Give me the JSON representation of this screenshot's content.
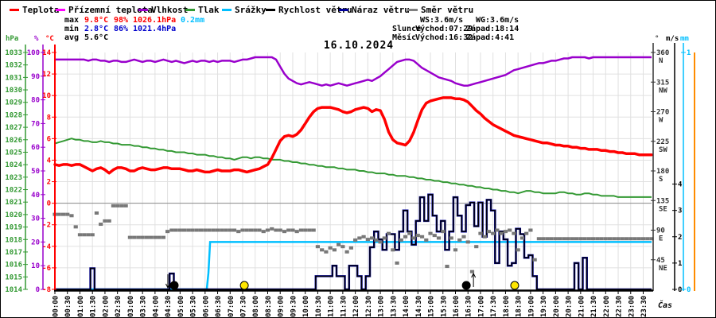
{
  "header": {
    "legend": [
      {
        "label": "Teplota",
        "color": "#ff0000"
      },
      {
        "label": "Přízemní teplota",
        "color": "#ff00ff"
      },
      {
        "label": "Vlhkost",
        "color": "#9900cc"
      },
      {
        "label": "Tlak",
        "color": "#339933"
      },
      {
        "label": "Srážky",
        "color": "#00bfff"
      },
      {
        "label": "Rychlost větru",
        "color": "#000000"
      },
      {
        "label": "Náraz větru",
        "color": "#000099"
      },
      {
        "label": "Směr větru",
        "color": "#808080"
      }
    ],
    "stats": {
      "max_label": "max",
      "max_temp": "9.8°C",
      "max_hum": "98%",
      "max_pres": "1026.1hPa",
      "max_precip": "0.2mm",
      "min_label": "min",
      "min_temp": "2.8°C",
      "min_hum": "86%",
      "min_pres": "1021.4hPa",
      "avg_label": "avg",
      "avg_temp": "5.6°C",
      "ws": "WS:3.6m/s",
      "wg": "WG:3.6m/s",
      "sun_label": "Slunce",
      "sun_rise": "Východ:07:29",
      "sun_set": "Západ:18:14",
      "moon_label": "Měsíc",
      "moon_rise": "Východ:16:32",
      "moon_set": "Západ:4:41"
    }
  },
  "colors": {
    "temperature": "#ff0000",
    "ground_temperature": "#ff00ff",
    "humidity": "#9900cc",
    "pressure": "#339933",
    "precipitation": "#00bfff",
    "wind_speed": "#000000",
    "wind_gust": "#000099",
    "wind_direction": "#787878",
    "stat_min": "#0000cc",
    "grid": "#e0e0e0",
    "zero_line": "#888888",
    "right_extra_axis": "#ff8c00",
    "sun_marker": "#ffe600",
    "moon_marker": "#000000"
  },
  "chart_data": {
    "type": "line",
    "title": "16.10.2024",
    "x_axis": {
      "label": "Čas",
      "start": "00:00",
      "end": "23:50",
      "step_minutes": 10,
      "tick_labels": [
        "00:00",
        "00:30",
        "01:00",
        "01:30",
        "02:00",
        "02:30",
        "03:00",
        "03:30",
        "04:00",
        "04:30",
        "05:00",
        "05:30",
        "06:00",
        "06:30",
        "07:00",
        "07:30",
        "08:00",
        "08:30",
        "09:00",
        "09:30",
        "10:00",
        "10:30",
        "11:00",
        "11:30",
        "12:00",
        "12:30",
        "13:00",
        "13:30",
        "14:00",
        "14:30",
        "15:00",
        "15:30",
        "16:00",
        "16:30",
        "17:00",
        "17:30",
        "18:00",
        "18:30",
        "19:00",
        "19:30",
        "20:00",
        "20:30",
        "21:00",
        "21:30",
        "22:00",
        "22:30",
        "23:00",
        "23:30"
      ]
    },
    "axes": {
      "temperature": {
        "label": "°C",
        "min": -8,
        "max": 14,
        "tick_step": 2
      },
      "humidity": {
        "label": "%",
        "min": 0,
        "max": 100,
        "tick_step": 10
      },
      "pressure": {
        "label": "hPa",
        "min": 1014,
        "max": 1033,
        "tick_step": 1
      },
      "direction": {
        "label": "°",
        "min": 0,
        "max": 360,
        "ticks": [
          [
            360,
            "N"
          ],
          [
            315,
            "NW"
          ],
          [
            270,
            "W"
          ],
          [
            225,
            "SW"
          ],
          [
            180,
            "S"
          ],
          [
            135,
            "SE"
          ],
          [
            90,
            "E"
          ],
          [
            45,
            "NE"
          ]
        ]
      },
      "wind": {
        "label": "m/s",
        "min": 0,
        "max": 9,
        "labeled_ticks": [
          0,
          1,
          2,
          3,
          4
        ]
      },
      "precip": {
        "label": "mm",
        "min": 0,
        "max": 1,
        "labeled_ticks": [
          0,
          1
        ]
      }
    },
    "series": {
      "temperature_c": [
        3.6,
        3.5,
        3.6,
        3.6,
        3.5,
        3.6,
        3.6,
        3.4,
        3.2,
        3.0,
        3.2,
        3.3,
        3.1,
        2.8,
        3.1,
        3.3,
        3.3,
        3.2,
        3.0,
        3.0,
        3.2,
        3.3,
        3.2,
        3.1,
        3.1,
        3.2,
        3.3,
        3.3,
        3.2,
        3.2,
        3.2,
        3.1,
        3.0,
        3.0,
        3.1,
        3.0,
        2.9,
        2.9,
        3.0,
        3.1,
        3.0,
        3.0,
        3.0,
        3.1,
        3.1,
        3.0,
        2.9,
        3.0,
        3.1,
        3.2,
        3.4,
        3.6,
        4.2,
        5.0,
        5.8,
        6.2,
        6.3,
        6.2,
        6.4,
        6.8,
        7.4,
        8.0,
        8.5,
        8.8,
        8.9,
        8.9,
        8.9,
        8.8,
        8.7,
        8.5,
        8.4,
        8.5,
        8.7,
        8.8,
        8.9,
        8.8,
        8.5,
        8.7,
        8.6,
        7.8,
        6.6,
        5.9,
        5.6,
        5.5,
        5.4,
        5.8,
        6.6,
        7.7,
        8.7,
        9.3,
        9.5,
        9.6,
        9.7,
        9.8,
        9.8,
        9.8,
        9.7,
        9.7,
        9.6,
        9.4,
        9.0,
        8.6,
        8.3,
        7.9,
        7.6,
        7.3,
        7.1,
        6.9,
        6.7,
        6.5,
        6.3,
        6.2,
        6.1,
        6.0,
        5.9,
        5.8,
        5.7,
        5.6,
        5.6,
        5.5,
        5.4,
        5.4,
        5.3,
        5.3,
        5.2,
        5.2,
        5.1,
        5.1,
        5.0,
        5.0,
        5.0,
        4.9,
        4.9,
        4.8,
        4.8,
        4.7,
        4.7,
        4.6,
        4.6,
        4.6,
        4.5,
        4.5,
        4.5,
        4.5
      ],
      "humidity_pct": [
        97,
        97,
        97,
        97,
        97,
        97,
        97,
        97,
        96.5,
        97,
        97,
        96.5,
        96.5,
        96,
        96.5,
        96.5,
        96,
        96,
        96.5,
        97,
        96.5,
        96,
        96.5,
        96.5,
        96,
        96.5,
        97,
        96.5,
        96,
        96.5,
        96,
        95.5,
        96,
        96.5,
        96,
        96.5,
        96.5,
        96,
        96.5,
        96,
        96.5,
        96.5,
        96.5,
        96,
        96.5,
        97,
        97,
        97.5,
        98,
        98,
        98,
        98,
        98,
        97,
        94,
        91,
        89,
        88,
        87,
        86.5,
        87,
        87.5,
        87,
        86.5,
        86,
        86.5,
        86,
        86.5,
        87,
        86.5,
        86,
        86.5,
        87,
        87.5,
        88,
        88.5,
        88,
        89,
        90,
        91.5,
        93,
        94.5,
        96,
        96.5,
        97,
        97,
        96.5,
        95,
        93.5,
        92.5,
        91.5,
        90.5,
        89.5,
        89,
        88.5,
        88,
        87,
        86.5,
        86,
        86,
        86.5,
        87,
        87.5,
        88,
        88.5,
        89,
        89.5,
        90,
        90.5,
        91.5,
        92.5,
        93,
        93.5,
        94,
        94.5,
        95,
        95.5,
        95.5,
        96,
        96.5,
        96.5,
        97,
        97.5,
        97.5,
        98,
        98,
        98,
        98,
        97.5,
        98,
        98,
        98,
        98,
        98,
        98,
        98,
        98,
        98,
        98,
        98,
        98,
        98,
        98,
        98
      ],
      "pressure_hpa": [
        1025.7,
        1025.8,
        1025.9,
        1026.0,
        1026.1,
        1026.0,
        1026.0,
        1025.9,
        1025.9,
        1025.8,
        1025.8,
        1025.9,
        1025.8,
        1025.8,
        1025.7,
        1025.7,
        1025.6,
        1025.6,
        1025.6,
        1025.5,
        1025.5,
        1025.4,
        1025.4,
        1025.3,
        1025.3,
        1025.2,
        1025.2,
        1025.1,
        1025.1,
        1025.0,
        1025.0,
        1025.0,
        1024.9,
        1024.9,
        1024.8,
        1024.8,
        1024.8,
        1024.7,
        1024.7,
        1024.6,
        1024.6,
        1024.5,
        1024.5,
        1024.4,
        1024.5,
        1024.6,
        1024.6,
        1024.5,
        1024.6,
        1024.6,
        1024.5,
        1024.5,
        1024.4,
        1024.4,
        1024.4,
        1024.3,
        1024.3,
        1024.2,
        1024.2,
        1024.1,
        1024.1,
        1024.0,
        1024.0,
        1023.9,
        1023.9,
        1023.8,
        1023.8,
        1023.8,
        1023.7,
        1023.7,
        1023.6,
        1023.6,
        1023.6,
        1023.5,
        1023.5,
        1023.4,
        1023.4,
        1023.3,
        1023.3,
        1023.3,
        1023.2,
        1023.2,
        1023.1,
        1023.1,
        1023.1,
        1023.0,
        1023.0,
        1022.9,
        1022.9,
        1022.8,
        1022.8,
        1022.7,
        1022.7,
        1022.6,
        1022.6,
        1022.5,
        1022.5,
        1022.4,
        1022.4,
        1022.3,
        1022.3,
        1022.2,
        1022.2,
        1022.1,
        1022.1,
        1022.0,
        1022.0,
        1021.9,
        1021.9,
        1021.8,
        1021.8,
        1021.7,
        1021.8,
        1021.9,
        1021.9,
        1021.8,
        1021.8,
        1021.7,
        1021.7,
        1021.7,
        1021.7,
        1021.8,
        1021.8,
        1021.7,
        1021.7,
        1021.6,
        1021.6,
        1021.7,
        1021.7,
        1021.6,
        1021.6,
        1021.5,
        1021.5,
        1021.5,
        1021.5,
        1021.4,
        1021.4,
        1021.4,
        1021.4,
        1021.4,
        1021.4,
        1021.4,
        1021.4,
        1021.4
      ],
      "wind_speed_ms": [
        0,
        0,
        0,
        0,
        0,
        0,
        0,
        0,
        0,
        0.8,
        0,
        0,
        0,
        0,
        0,
        0,
        0,
        0,
        0,
        0,
        0,
        0,
        0,
        0,
        0,
        0,
        0,
        0,
        0.6,
        0,
        0,
        0,
        0,
        0,
        0,
        0,
        0,
        0,
        0,
        0,
        0,
        0,
        0,
        0,
        0,
        0,
        0,
        0,
        0,
        0,
        0,
        0,
        0,
        0,
        0,
        0,
        0,
        0,
        0,
        0,
        0,
        0,
        0,
        0.5,
        0.5,
        0.5,
        0.5,
        0.9,
        0.5,
        0.5,
        0,
        0.9,
        0.9,
        0.5,
        0,
        0.5,
        1.6,
        2.2,
        1.9,
        1.5,
        2.1,
        2.1,
        1.5,
        2.2,
        3.0,
        2.2,
        1.7,
        2.6,
        3.5,
        2.6,
        3.6,
        2.8,
        2.2,
        2.6,
        1.5,
        2.2,
        3.5,
        2.8,
        2.2,
        3.2,
        3.3,
        2.4,
        3.3,
        2.0,
        3.4,
        3.0,
        1.0,
        2.2,
        1.9,
        0.9,
        1.0,
        2.3,
        2.1,
        1.2,
        1.3,
        0.5,
        0,
        0,
        0,
        0,
        0,
        0,
        0,
        0,
        0,
        1.0,
        0,
        1.2,
        0,
        0,
        0,
        0,
        0,
        0,
        0,
        0,
        0,
        0,
        0,
        0,
        0,
        0,
        0,
        0
      ],
      "wind_gust_ms_note": "gust curve coincides with wind speed (WS = WG = 3.6 m/s)",
      "wind_direction_deg": [
        114,
        114,
        114,
        114,
        112,
        95,
        83,
        83,
        83,
        83,
        116,
        99,
        104,
        104,
        127,
        127,
        127,
        127,
        79,
        79,
        79,
        79,
        79,
        79,
        79,
        79,
        79,
        88,
        90,
        90,
        90,
        90,
        90,
        90,
        90,
        90,
        90,
        90,
        90,
        90,
        90,
        90,
        90,
        90,
        88,
        90,
        90,
        90,
        90,
        90,
        88,
        90,
        92,
        90,
        90,
        88,
        90,
        90,
        88,
        90,
        90,
        90,
        90,
        65,
        60,
        57,
        63,
        60,
        68,
        65,
        57,
        63,
        75,
        78,
        80,
        76,
        78,
        75,
        72,
        78,
        85,
        60,
        40,
        75,
        80,
        85,
        78,
        82,
        80,
        75,
        85,
        82,
        78,
        88,
        35,
        78,
        60,
        75,
        80,
        72,
        27,
        65,
        85,
        80,
        88,
        85,
        90,
        85,
        88,
        90,
        85,
        60,
        78,
        85,
        90,
        45,
        77,
        77,
        77,
        77,
        77,
        77,
        77,
        77,
        77,
        77,
        77,
        77,
        77,
        77,
        77,
        77,
        77,
        77,
        77,
        77,
        77,
        77,
        77,
        77,
        77,
        77,
        77,
        77
      ],
      "precipitation_mm_cumulative_breakpoints": [
        [
          "00:00",
          0
        ],
        [
          "06:04",
          0
        ],
        [
          "06:08",
          0.07
        ],
        [
          "06:12",
          0.2
        ],
        [
          "23:50",
          0.2
        ]
      ]
    },
    "markers": [
      {
        "type": "moon",
        "event": "set",
        "time": "04:46",
        "arrow": "down"
      },
      {
        "type": "sun",
        "event": "rise",
        "time": "07:34"
      },
      {
        "type": "moon",
        "event": "rise",
        "time": "16:26",
        "arrow": "up"
      },
      {
        "type": "sun",
        "event": "set",
        "time": "18:22"
      }
    ],
    "layout_hints": {
      "grid": true,
      "legend_position": "top",
      "zero_celsius_line": true
    }
  }
}
